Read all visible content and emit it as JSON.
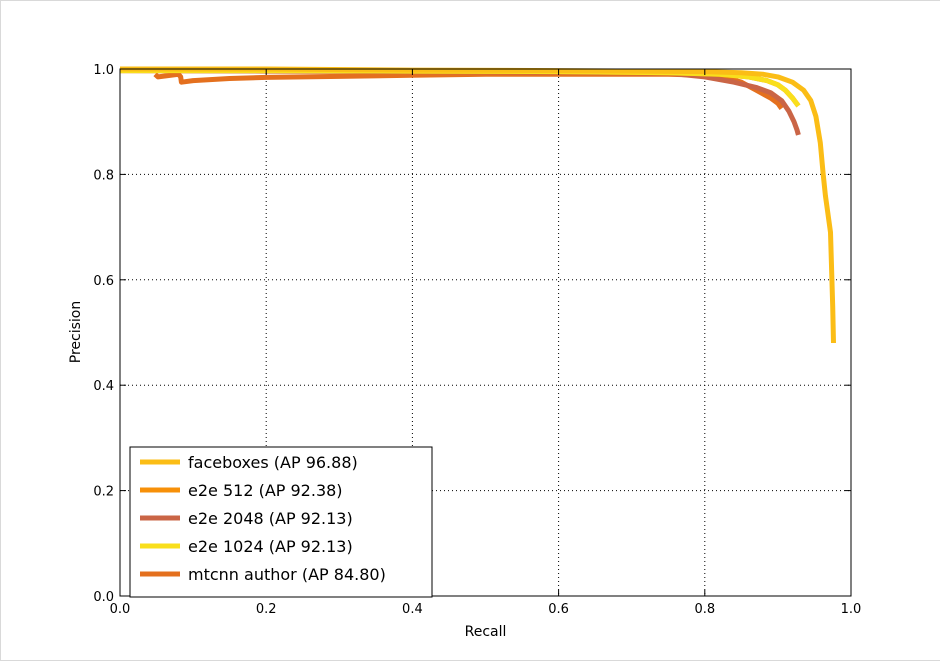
{
  "chart_data": {
    "type": "line",
    "title": "",
    "xlabel": "Recall",
    "ylabel": "Precision",
    "xlim": [
      0.0,
      1.0
    ],
    "ylim": [
      0.0,
      1.0
    ],
    "xticks": [
      "0.0",
      "0.2",
      "0.4",
      "0.6",
      "0.8",
      "1.0"
    ],
    "yticks": [
      "0.0",
      "0.2",
      "0.4",
      "0.6",
      "0.8",
      "1.0"
    ],
    "grid": true,
    "legend_position": "lower-left",
    "series": [
      {
        "name": "faceboxes (AP 96.88)",
        "color": "#fbbd16",
        "x": [
          0.0,
          0.1,
          0.2,
          0.4,
          0.6,
          0.8,
          0.85,
          0.88,
          0.9,
          0.92,
          0.935,
          0.945,
          0.952,
          0.958,
          0.962,
          0.965,
          0.968,
          0.972,
          0.975,
          0.976
        ],
        "y": [
          1.0,
          1.0,
          1.0,
          0.998,
          0.997,
          0.995,
          0.993,
          0.99,
          0.985,
          0.975,
          0.96,
          0.94,
          0.91,
          0.86,
          0.8,
          0.76,
          0.73,
          0.69,
          0.55,
          0.48
        ]
      },
      {
        "name": "e2e 512 (AP 92.38)",
        "color": "#f79008",
        "x": [
          0.0,
          0.2,
          0.4,
          0.6,
          0.75,
          0.82,
          0.86,
          0.885,
          0.9,
          0.91,
          0.92,
          0.928
        ],
        "y": [
          0.997,
          0.997,
          0.996,
          0.995,
          0.993,
          0.99,
          0.985,
          0.978,
          0.97,
          0.96,
          0.945,
          0.93
        ]
      },
      {
        "name": "e2e 2048 (AP 92.13)",
        "color": "#ca6546",
        "x": [
          0.0,
          0.2,
          0.4,
          0.6,
          0.75,
          0.8,
          0.84,
          0.87,
          0.89,
          0.905,
          0.915,
          0.922,
          0.926,
          0.928
        ],
        "y": [
          0.997,
          0.996,
          0.995,
          0.994,
          0.992,
          0.985,
          0.975,
          0.965,
          0.955,
          0.94,
          0.92,
          0.9,
          0.885,
          0.875
        ]
      },
      {
        "name": "e2e 1024 (AP 92.13)",
        "color": "#f9df1c",
        "x": [
          0.0,
          0.2,
          0.4,
          0.6,
          0.75,
          0.82,
          0.86,
          0.885,
          0.9,
          0.91,
          0.92,
          0.928
        ],
        "y": [
          0.997,
          0.997,
          0.996,
          0.995,
          0.993,
          0.99,
          0.985,
          0.978,
          0.97,
          0.96,
          0.945,
          0.93
        ]
      },
      {
        "name": "mtcnn author (AP 84.80)",
        "color": "#e4701e",
        "x": [
          0.048,
          0.052,
          0.08,
          0.083,
          0.084,
          0.1,
          0.15,
          0.2,
          0.3,
          0.4,
          0.5,
          0.6,
          0.7,
          0.75,
          0.8,
          0.83,
          0.85,
          0.87,
          0.89,
          0.9,
          0.905
        ],
        "y": [
          0.99,
          0.985,
          0.99,
          0.985,
          0.975,
          0.978,
          0.982,
          0.984,
          0.986,
          0.988,
          0.99,
          0.99,
          0.99,
          0.99,
          0.988,
          0.983,
          0.975,
          0.96,
          0.945,
          0.935,
          0.925
        ]
      }
    ]
  }
}
